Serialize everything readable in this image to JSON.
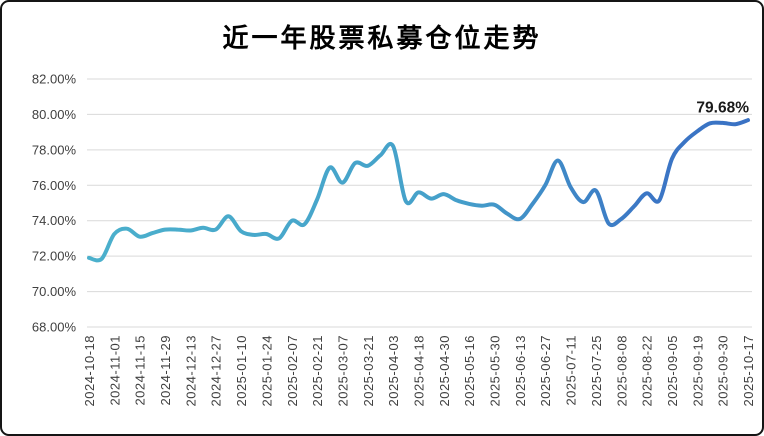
{
  "chart_data": {
    "type": "line",
    "title": "近一年股票私募仓位走势",
    "y_axis": {
      "tick_labels": [
        "82.00%",
        "80.00%",
        "78.00%",
        "76.00%",
        "74.00%",
        "72.00%",
        "70.00%",
        "68.00%"
      ],
      "max": 82,
      "min": 68,
      "step": 2
    },
    "x_tick_labels": [
      "2024-10-18",
      "2024-11-01",
      "2024-11-15",
      "2024-11-29",
      "2024-12-13",
      "2024-12-27",
      "2025-01-10",
      "2025-01-24",
      "2025-02-07",
      "2025-02-21",
      "2025-03-07",
      "2025-03-21",
      "2025-04-03",
      "2025-04-18",
      "2025-04-30",
      "2025-05-16",
      "2025-05-30",
      "2025-06-13",
      "2025-06-27",
      "2025-07-11",
      "2025-07-25",
      "2025-08-08",
      "2025-08-22",
      "2025-09-05",
      "2025-09-19",
      "2025-09-30",
      "2025-10-17"
    ],
    "label_every_n_points": 2,
    "values": [
      71.9,
      71.85,
      73.25,
      73.55,
      73.1,
      73.3,
      73.5,
      73.5,
      73.45,
      73.6,
      73.5,
      74.25,
      73.4,
      73.2,
      73.25,
      73.0,
      74.0,
      73.8,
      75.2,
      77.0,
      76.15,
      77.25,
      77.1,
      77.7,
      78.2,
      75.1,
      75.6,
      75.25,
      75.5,
      75.15,
      74.95,
      74.85,
      74.9,
      74.4,
      74.1,
      74.95,
      76.0,
      77.4,
      75.9,
      75.05,
      75.7,
      73.85,
      74.1,
      74.8,
      75.55,
      75.15,
      77.5,
      78.45,
      79.05,
      79.5,
      79.52,
      79.45,
      79.68
    ],
    "end_point_label": "79.68%",
    "grid": true,
    "legend": false,
    "colors": {
      "line_gradient_start": "#4BB0CC",
      "line_gradient_mid": "#45A0CA",
      "line_gradient_late": "#3B76C5",
      "line_gradient_end": "#3A72C4",
      "grid_line": "#D9D9D9",
      "axis_text": "#3F3F3F",
      "end_label_text": "#1A1A1A",
      "title_text": "#000000"
    }
  }
}
